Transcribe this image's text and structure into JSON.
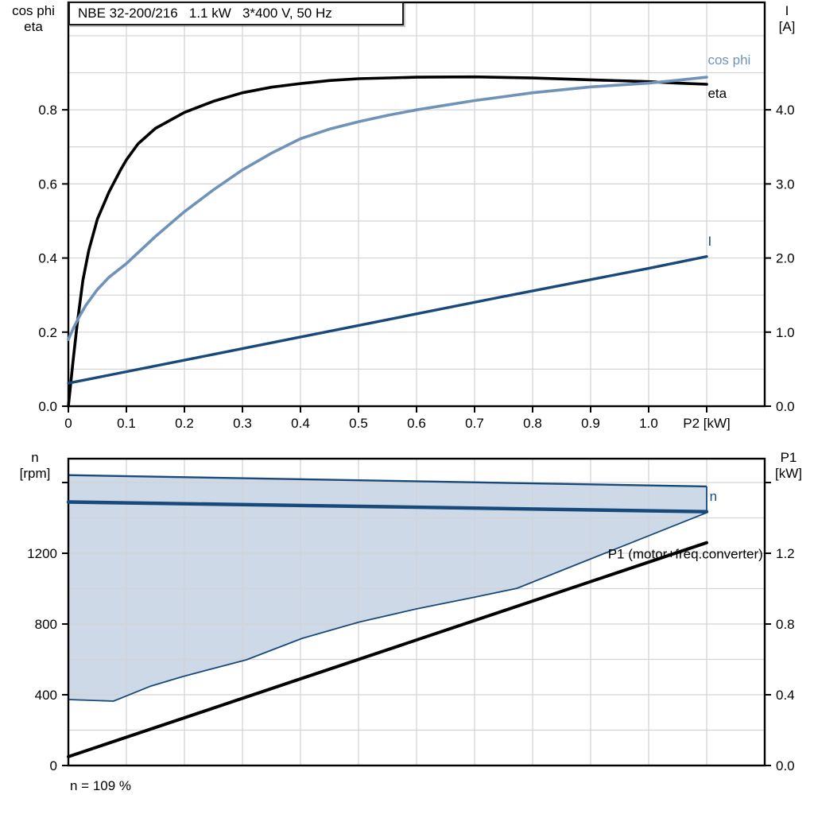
{
  "header": {
    "title": "NBE 32-200/216   1.1 kW   3*400 V, 50 Hz"
  },
  "axis_headers": {
    "top_left": "cos phi\neta",
    "top_right": "I\n[A]",
    "bottom_left": "n\n[rpm]",
    "bottom_right": "P1\n[kW]"
  },
  "colors": {
    "black": "#000000",
    "light_blue": "#6f93b8",
    "dark_blue": "#17497b",
    "range_fill": "#cdd9e6",
    "grid": "#d3d3d7",
    "frame": "#000000"
  },
  "chart_data": [
    {
      "id": "top-panel",
      "type": "line",
      "title": "NBE 32-200/216   1.1 kW   3*400 V, 50 Hz",
      "x_axis": {
        "label": "P2 [kW]",
        "label_at": 1.1,
        "range": [
          0,
          1.2
        ],
        "ticks": [
          0,
          0.1,
          0.2,
          0.3,
          0.4,
          0.5,
          0.6,
          0.7,
          0.8,
          0.9,
          1.0,
          1.1
        ],
        "tick_labels": [
          "0",
          "0.1",
          "0.2",
          "0.3",
          "0.4",
          "0.5",
          "0.6",
          "0.7",
          "0.8",
          "0.9",
          "1.0",
          ""
        ],
        "grid": {
          "min": 0.1,
          "max": 1.1,
          "step": 0.1
        }
      },
      "y_left": {
        "label": "cos phi / eta",
        "range": [
          0,
          1.09
        ],
        "ticks": [
          0,
          0.2,
          0.4,
          0.6,
          0.8
        ],
        "tick_labels": [
          "0.0",
          "0.2",
          "0.4",
          "0.6",
          "0.8"
        ],
        "grid": {
          "min": 0.1,
          "max": 1.0,
          "step": 0.1
        }
      },
      "y_right": {
        "label": "I [A]",
        "range": [
          0,
          5.45
        ],
        "ticks": [
          0,
          1,
          2,
          3,
          4
        ],
        "tick_labels": [
          "0.0",
          "1.0",
          "2.0",
          "3.0",
          "4.0"
        ]
      },
      "series": [
        {
          "name": "eta",
          "axis": "left",
          "color": "black",
          "width": 3.6,
          "label": {
            "text": "eta",
            "x": 1.102,
            "y": 0.845,
            "anchor": "start"
          },
          "points": [
            [
              0,
              0
            ],
            [
              0.008,
              0.12
            ],
            [
              0.015,
              0.22
            ],
            [
              0.025,
              0.34
            ],
            [
              0.035,
              0.42
            ],
            [
              0.05,
              0.505
            ],
            [
              0.07,
              0.578
            ],
            [
              0.09,
              0.638
            ],
            [
              0.1,
              0.665
            ],
            [
              0.12,
              0.708
            ],
            [
              0.15,
              0.75
            ],
            [
              0.2,
              0.793
            ],
            [
              0.25,
              0.823
            ],
            [
              0.3,
              0.846
            ],
            [
              0.35,
              0.861
            ],
            [
              0.4,
              0.871
            ],
            [
              0.45,
              0.879
            ],
            [
              0.5,
              0.884
            ],
            [
              0.6,
              0.888
            ],
            [
              0.7,
              0.889
            ],
            [
              0.8,
              0.886
            ],
            [
              0.9,
              0.881
            ],
            [
              1.0,
              0.876
            ],
            [
              1.05,
              0.872
            ],
            [
              1.1,
              0.869
            ]
          ]
        },
        {
          "name": "cos phi",
          "axis": "left",
          "color": "light_blue",
          "width": 3.6,
          "label": {
            "text": "cos phi",
            "x": 1.102,
            "y": 0.935,
            "anchor": "start"
          },
          "points": [
            [
              0,
              0.18
            ],
            [
              0.01,
              0.215
            ],
            [
              0.02,
              0.245
            ],
            [
              0.03,
              0.272
            ],
            [
              0.05,
              0.315
            ],
            [
              0.07,
              0.348
            ],
            [
              0.1,
              0.385
            ],
            [
              0.15,
              0.458
            ],
            [
              0.2,
              0.525
            ],
            [
              0.25,
              0.584
            ],
            [
              0.3,
              0.638
            ],
            [
              0.35,
              0.683
            ],
            [
              0.4,
              0.722
            ],
            [
              0.45,
              0.748
            ],
            [
              0.5,
              0.768
            ],
            [
              0.55,
              0.785
            ],
            [
              0.6,
              0.8
            ],
            [
              0.7,
              0.825
            ],
            [
              0.8,
              0.846
            ],
            [
              0.9,
              0.862
            ],
            [
              1.0,
              0.872
            ],
            [
              1.05,
              0.88
            ],
            [
              1.1,
              0.888
            ]
          ]
        },
        {
          "name": "I",
          "axis": "right",
          "color": "dark_blue",
          "width": 3.4,
          "label": {
            "text": "I",
            "x": 1.102,
            "y": 2.23,
            "anchor": "start"
          },
          "points": [
            [
              0,
              0.31
            ],
            [
              0.25,
              0.7
            ],
            [
              0.5,
              1.09
            ],
            [
              0.75,
              1.48
            ],
            [
              1.0,
              1.86
            ],
            [
              1.1,
              2.02
            ]
          ]
        }
      ]
    },
    {
      "id": "bottom-panel",
      "type": "line",
      "footnote": "n = 109 %",
      "x_axis": {
        "label": "",
        "label_at": null,
        "range": [
          0,
          1.2
        ],
        "ticks": [],
        "tick_labels": [],
        "grid": {
          "min": 0.1,
          "max": 1.1,
          "step": 0.1
        }
      },
      "y_left": {
        "label": "n [rpm]",
        "range": [
          0,
          1735
        ],
        "ticks": [
          0,
          400,
          800,
          1200,
          1600
        ],
        "tick_labels": [
          "0",
          "400",
          "800",
          "1200",
          ""
        ],
        "grid": {
          "min": 200,
          "max": 1600,
          "step": 200
        }
      },
      "y_right": {
        "label": "P1 [kW]",
        "range": [
          0,
          1.735
        ],
        "ticks": [
          0,
          0.4,
          0.8,
          1.2,
          1.6
        ],
        "tick_labels": [
          "0.0",
          "0.4",
          "0.8",
          "1.2",
          ""
        ]
      },
      "region": {
        "name": "speed-range",
        "upper": [
          [
            0,
            1642
          ],
          [
            0.55,
            1610
          ],
          [
            1.1,
            1578
          ]
        ],
        "lower": [
          [
            0,
            373
          ],
          [
            0.078,
            364
          ],
          [
            0.142,
            449
          ],
          [
            0.197,
            503
          ],
          [
            0.307,
            598
          ],
          [
            0.403,
            719
          ],
          [
            0.5,
            810
          ],
          [
            0.599,
            885
          ],
          [
            0.7,
            952
          ],
          [
            0.773,
            1002
          ],
          [
            1.1,
            1430
          ]
        ]
      },
      "series": [
        {
          "name": "n",
          "axis": "left",
          "color": "dark_blue",
          "width": 4.4,
          "label": {
            "text": "n",
            "x": 1.105,
            "y": 1523,
            "anchor": "start"
          },
          "points": [
            [
              0,
              1490
            ],
            [
              0.55,
              1463
            ],
            [
              1.1,
              1435
            ]
          ]
        },
        {
          "name": "P1",
          "axis": "right",
          "color": "black",
          "width": 4.0,
          "label": {
            "text": "P1 (motor+freq.converter)",
            "x": 1.197,
            "y": 1.197,
            "anchor": "end"
          },
          "points": [
            [
              0,
              0.05
            ],
            [
              1.1,
              1.26
            ]
          ]
        }
      ]
    }
  ]
}
